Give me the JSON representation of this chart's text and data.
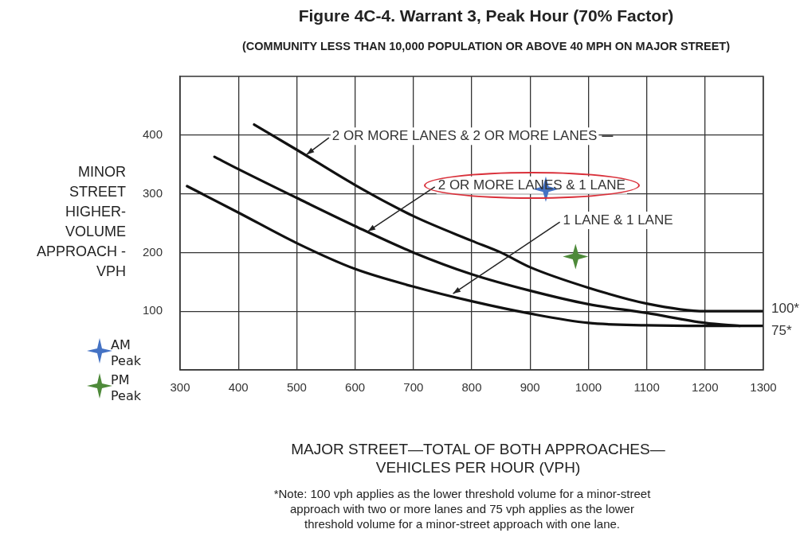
{
  "chart_data": {
    "type": "line",
    "title": "Figure 4C-4. Warrant 3, Peak Hour (70% Factor)",
    "subtitle": "(COMMUNITY LESS THAN 10,000 POPULATION OR ABOVE 40 MPH ON MAJOR STREET)",
    "xlabel": "MAJOR STREET—TOTAL OF BOTH APPROACHES—\nVEHICLES PER HOUR (VPH)",
    "ylabel": "MINOR\nSTREET\nHIGHER-\nVOLUME\nAPPROACH -\nVPH",
    "xlim": [
      300,
      1300
    ],
    "xticks": [
      300,
      400,
      500,
      600,
      700,
      800,
      900,
      1000,
      1100,
      1200,
      1300
    ],
    "ylim": [
      0,
      500
    ],
    "yticks": [
      100,
      200,
      300,
      400
    ],
    "grid": true,
    "legend": "bottom left",
    "line_style": "solid",
    "series": [
      {
        "type": "line",
        "color": "#111111",
        "x": [
          427,
          500,
          600,
          700,
          800,
          850,
          900,
          1000,
          1100,
          1200,
          1300
        ],
        "values": [
          418,
          375,
          315,
          262,
          220,
          200,
          175,
          140,
          113,
          100,
          100
        ]
      },
      {
        "type": "line",
        "color": "#111111",
        "x": [
          359,
          400,
          500,
          600,
          700,
          800,
          900,
          1000,
          1100,
          1200,
          1260
        ],
        "values": [
          363,
          342,
          293,
          245,
          200,
          163,
          135,
          112,
          97,
          80,
          75
        ]
      },
      {
        "type": "line",
        "color": "#111111",
        "x": [
          312,
          400,
          500,
          600,
          700,
          800,
          900,
          1000,
          1100,
          1200,
          1300
        ],
        "values": [
          313,
          268,
          216,
          172,
          142,
          117,
          96,
          80,
          76,
          75,
          75
        ]
      },
      {
        "type": "scatter",
        "name": "AM Peak",
        "color": "#4472c4",
        "marker": "star",
        "x": [
          927
        ],
        "values": [
          308
        ]
      },
      {
        "type": "scatter",
        "name": "PM Peak",
        "color": "#4e8a3a",
        "marker": "star",
        "x": [
          978
        ],
        "values": [
          193
        ]
      }
    ],
    "annotations": [
      {
        "text": "2 OR MORE LANES & 2 OR MORE LANES",
        "x": 517,
        "y": 367
      },
      {
        "text": "2 OR MORE LANES & 1 LANE",
        "x": 622,
        "y": 236
      },
      {
        "text": "1 LANE & 1 LANE",
        "x": 768,
        "y": 130
      },
      {
        "text": "100*",
        "x": 1300,
        "y": 100
      },
      {
        "text": "75*",
        "x": 1300,
        "y": 75
      },
      "*Note: 100 vph applies as the lower threshold volume for a minor-street\napproach with two or more lanes and 75 vph applies as the lower\nthreshold volume for a minor-street approach with one lane."
    ]
  }
}
